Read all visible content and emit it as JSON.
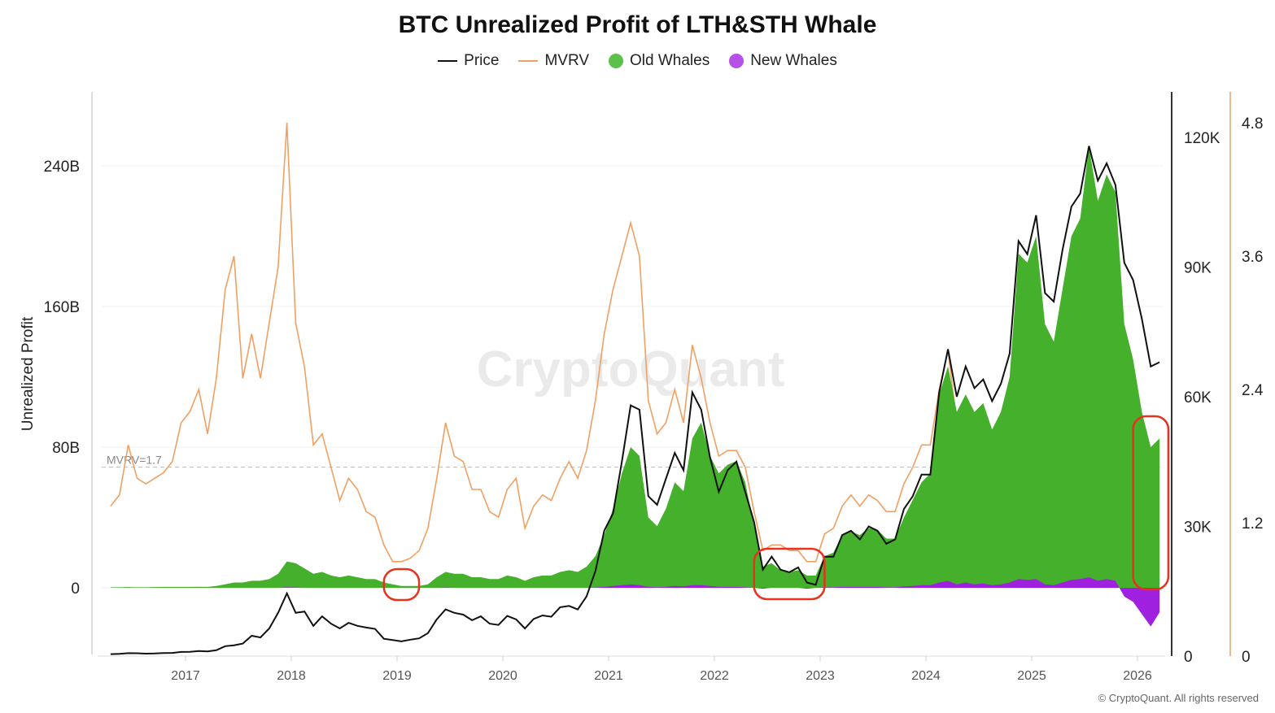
{
  "chart_data": {
    "type": "area",
    "title": "BTC Unrealized Profit of LTH&STH Whale",
    "ylabel": "Unrealized Profit",
    "watermark": "CryptoQuant",
    "copyright": "© CryptoQuant. All rights reserved",
    "legend_position": "top-center",
    "grid": true,
    "x_ticks": [
      "2017",
      "2018",
      "2019",
      "2020",
      "2021",
      "2022",
      "2023",
      "2024",
      "2025",
      "2026"
    ],
    "y_left": {
      "ticks": [
        "0",
        "80B",
        "160B",
        "240B"
      ],
      "values": [
        0,
        80,
        160,
        240
      ],
      "unit": "B USD",
      "range": [
        -40,
        270
      ]
    },
    "y_price": {
      "ticks": [
        "0",
        "30K",
        "60K",
        "90K",
        "120K"
      ],
      "values": [
        0,
        30,
        60,
        90,
        120
      ],
      "unit": "K USD",
      "range": [
        0,
        130
      ]
    },
    "y_mvrv": {
      "ticks": [
        "0",
        "1.2",
        "2.4",
        "3.6",
        "4.8"
      ],
      "values": [
        0,
        1.2,
        2.4,
        3.6,
        4.8
      ],
      "range": [
        0,
        5.1
      ]
    },
    "reference_line": {
      "label": "MVRV=1.7",
      "value": 1.7,
      "axis": "mvrv"
    },
    "colors": {
      "price": "#111111",
      "mvrv": "#f0a062",
      "old_whales": "#45b02b",
      "new_whales": "#a020e0",
      "annotation": "#e8321e"
    },
    "annotations": [
      {
        "shape": "rounded-rect",
        "x_range": [
          "2018-11",
          "2019-03"
        ]
      },
      {
        "shape": "rounded-rect",
        "x_range": [
          "2022-05",
          "2023-01"
        ]
      },
      {
        "shape": "rounded-rect",
        "x_range": [
          "2025-12",
          "2026-04"
        ]
      }
    ],
    "x": [
      "2016-04",
      "2016-05",
      "2016-06",
      "2016-07",
      "2016-08",
      "2016-09",
      "2016-10",
      "2016-11",
      "2016-12",
      "2017-01",
      "2017-02",
      "2017-03",
      "2017-04",
      "2017-05",
      "2017-06",
      "2017-07",
      "2017-08",
      "2017-09",
      "2017-10",
      "2017-11",
      "2017-12",
      "2018-01",
      "2018-02",
      "2018-03",
      "2018-04",
      "2018-05",
      "2018-06",
      "2018-07",
      "2018-08",
      "2018-09",
      "2018-10",
      "2018-11",
      "2018-12",
      "2019-01",
      "2019-02",
      "2019-03",
      "2019-04",
      "2019-05",
      "2019-06",
      "2019-07",
      "2019-08",
      "2019-09",
      "2019-10",
      "2019-11",
      "2019-12",
      "2020-01",
      "2020-02",
      "2020-03",
      "2020-04",
      "2020-05",
      "2020-06",
      "2020-07",
      "2020-08",
      "2020-09",
      "2020-10",
      "2020-11",
      "2020-12",
      "2021-01",
      "2021-02",
      "2021-03",
      "2021-04",
      "2021-05",
      "2021-06",
      "2021-07",
      "2021-08",
      "2021-09",
      "2021-10",
      "2021-11",
      "2021-12",
      "2022-01",
      "2022-02",
      "2022-03",
      "2022-04",
      "2022-05",
      "2022-06",
      "2022-07",
      "2022-08",
      "2022-09",
      "2022-10",
      "2022-11",
      "2022-12",
      "2023-01",
      "2023-02",
      "2023-03",
      "2023-04",
      "2023-05",
      "2023-06",
      "2023-07",
      "2023-08",
      "2023-09",
      "2023-10",
      "2023-11",
      "2023-12",
      "2024-01",
      "2024-02",
      "2024-03",
      "2024-04",
      "2024-05",
      "2024-06",
      "2024-07",
      "2024-08",
      "2024-09",
      "2024-10",
      "2024-11",
      "2024-12",
      "2025-01",
      "2025-02",
      "2025-03",
      "2025-04",
      "2025-05",
      "2025-06",
      "2025-07",
      "2025-08",
      "2025-09",
      "2025-10",
      "2025-11",
      "2025-12",
      "2026-01",
      "2026-02",
      "2026-03"
    ],
    "series": [
      {
        "name": "Price",
        "axis": "price",
        "type": "line",
        "values": [
          0.45,
          0.53,
          0.67,
          0.65,
          0.57,
          0.6,
          0.7,
          0.74,
          0.96,
          1.0,
          1.19,
          1.07,
          1.35,
          2.3,
          2.5,
          2.9,
          4.7,
          4.3,
          6.4,
          10,
          14.5,
          10,
          10.3,
          7,
          9.2,
          7.5,
          6.4,
          7.7,
          7,
          6.6,
          6.3,
          4,
          3.7,
          3.4,
          3.8,
          4.1,
          5.3,
          8.5,
          10.8,
          10,
          9.6,
          8.3,
          9.2,
          7.5,
          7.2,
          9.3,
          8.5,
          6.4,
          8.6,
          9.4,
          9.1,
          11.3,
          11.6,
          10.8,
          13.8,
          19.7,
          29,
          33,
          45,
          58,
          57,
          37,
          35,
          41,
          47,
          43,
          61,
          57,
          46,
          38,
          43,
          45,
          38,
          31,
          20,
          23,
          20,
          19.4,
          20.5,
          17,
          16.5,
          23,
          23,
          28,
          29,
          27,
          30,
          29,
          26,
          27,
          34,
          37,
          42,
          42,
          61,
          71,
          60,
          67,
          62,
          64,
          59,
          63,
          70,
          96,
          93,
          102,
          84,
          82,
          94,
          104,
          107,
          118,
          110,
          114,
          109,
          91,
          87,
          78,
          67,
          68
        ]
      },
      {
        "name": "MVRV",
        "axis": "mvrv",
        "type": "line",
        "values": [
          1.35,
          1.45,
          1.9,
          1.6,
          1.55,
          1.6,
          1.65,
          1.75,
          2.1,
          2.2,
          2.4,
          2.0,
          2.5,
          3.3,
          3.6,
          2.5,
          2.9,
          2.5,
          3.0,
          3.5,
          4.8,
          3.0,
          2.6,
          1.9,
          2.0,
          1.7,
          1.4,
          1.6,
          1.5,
          1.3,
          1.25,
          1.0,
          0.85,
          0.85,
          0.88,
          0.95,
          1.15,
          1.6,
          2.1,
          1.8,
          1.75,
          1.5,
          1.5,
          1.3,
          1.25,
          1.5,
          1.6,
          1.15,
          1.35,
          1.45,
          1.4,
          1.6,
          1.75,
          1.6,
          1.85,
          2.3,
          2.9,
          3.3,
          3.6,
          3.9,
          3.6,
          2.3,
          2.0,
          2.1,
          2.4,
          2.1,
          2.8,
          2.5,
          2.1,
          1.8,
          1.85,
          1.85,
          1.7,
          1.3,
          0.95,
          1.0,
          1.0,
          0.95,
          0.95,
          0.85,
          0.85,
          1.1,
          1.15,
          1.35,
          1.45,
          1.35,
          1.45,
          1.4,
          1.3,
          1.3,
          1.55,
          1.7,
          1.9,
          1.9,
          2.4,
          2.75,
          2.1,
          2.2,
          2.0,
          2.0,
          1.8,
          1.9,
          2.0,
          2.6,
          2.5,
          2.6,
          2.2,
          2.1,
          2.3,
          2.4,
          2.4,
          2.5,
          2.3,
          2.3,
          2.2,
          1.8,
          1.7,
          1.55,
          1.4,
          1.4
        ]
      },
      {
        "name": "Old Whales",
        "axis": "left",
        "type": "area",
        "values": [
          0.3,
          0.3,
          0.4,
          0.3,
          0.3,
          0.4,
          0.5,
          0.5,
          0.5,
          0.5,
          0.6,
          0.5,
          1,
          2,
          3,
          3,
          4,
          4,
          5,
          8,
          15,
          14,
          11,
          8,
          9,
          7,
          6,
          7,
          6,
          5,
          5,
          3,
          2,
          1,
          1,
          1,
          2,
          6,
          9,
          8,
          8,
          6,
          6,
          5,
          5,
          7,
          6,
          4,
          6,
          7,
          7,
          9,
          10,
          9,
          12,
          18,
          30,
          45,
          65,
          80,
          75,
          40,
          35,
          45,
          60,
          55,
          85,
          94,
          75,
          65,
          70,
          72,
          60,
          35,
          12,
          14,
          10,
          9,
          10,
          7,
          7,
          18,
          20,
          30,
          32,
          30,
          34,
          33,
          28,
          28,
          40,
          50,
          60,
          65,
          110,
          126,
          100,
          110,
          100,
          105,
          90,
          100,
          120,
          190,
          185,
          200,
          150,
          140,
          170,
          200,
          210,
          251,
          220,
          235,
          225,
          150,
          130,
          100,
          80,
          85
        ]
      },
      {
        "name": "New Whales",
        "axis": "left",
        "type": "area",
        "values": [
          0,
          0,
          0,
          0,
          0,
          0,
          0,
          0,
          0,
          0,
          0,
          0,
          0,
          0,
          0,
          0,
          0,
          0,
          0,
          0,
          0.3,
          0.2,
          0,
          0,
          0,
          0,
          0,
          0,
          0,
          0,
          0,
          0,
          0,
          0,
          0,
          0,
          0,
          0,
          0.2,
          0,
          0,
          0,
          0,
          0,
          0,
          0,
          0,
          0,
          0,
          0,
          0,
          0,
          0,
          0,
          0,
          0.2,
          0.5,
          1,
          1.5,
          2,
          1.5,
          0.5,
          0.3,
          0.5,
          1,
          0.8,
          1.5,
          1.5,
          1,
          0.5,
          0.5,
          0.5,
          0.3,
          0,
          -0.5,
          0,
          0,
          0,
          0,
          -0.5,
          0,
          0.3,
          0.3,
          0.5,
          0.5,
          0.5,
          0.5,
          0.5,
          0.3,
          0.3,
          0.8,
          1,
          1.5,
          1.5,
          3,
          4,
          2,
          3,
          2,
          2.5,
          1.5,
          2,
          3,
          5,
          4.5,
          5,
          2,
          1.5,
          3,
          4.5,
          5,
          6,
          4,
          5,
          4,
          -5,
          -8,
          -15,
          -22,
          -14
        ]
      }
    ]
  }
}
